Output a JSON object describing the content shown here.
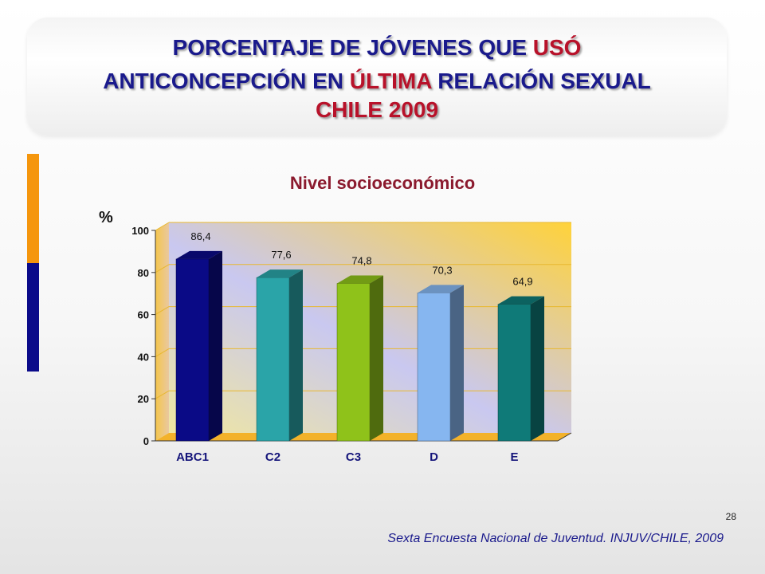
{
  "title": {
    "line1_prefix": "PORCENTAJE DE JÓVENES QUE ",
    "line1_red": "USÓ",
    "line2_prefix": "ANTICONCEPCIÓN EN ",
    "line2_red": "ÚLTIMA",
    "line2_suffix": " RELACIÓN SEXUAL",
    "line3": "CHILE 2009"
  },
  "page_number": "28",
  "source": "Sexta Encuesta Nacional de Juventud. INJUV/CHILE, 2009",
  "colors": {
    "title_blue": "#1a1a8c",
    "title_red": "#b8122a",
    "chart_title": "#8b1a2e",
    "accent_orange": "#f5960d",
    "accent_blue": "#0b0b8a"
  },
  "chart_data": {
    "type": "bar",
    "title": "Nivel socioeconómico",
    "ylabel": "%",
    "xlabel": "",
    "categories": [
      "ABC1",
      "C2",
      "C3",
      "D",
      "E"
    ],
    "values": [
      86.4,
      77.6,
      74.8,
      70.3,
      64.9
    ],
    "value_labels": [
      "86,4",
      "77,6",
      "74,8",
      "70,3",
      "64,9"
    ],
    "ylim": [
      0,
      100
    ],
    "yticks": [
      0,
      20,
      40,
      60,
      80,
      100
    ],
    "grid": true,
    "legend": "none",
    "bar_colors": [
      "#0a0a86",
      "#2aa4a8",
      "#8fc21a",
      "#86b6f0",
      "#0f7a78"
    ]
  }
}
